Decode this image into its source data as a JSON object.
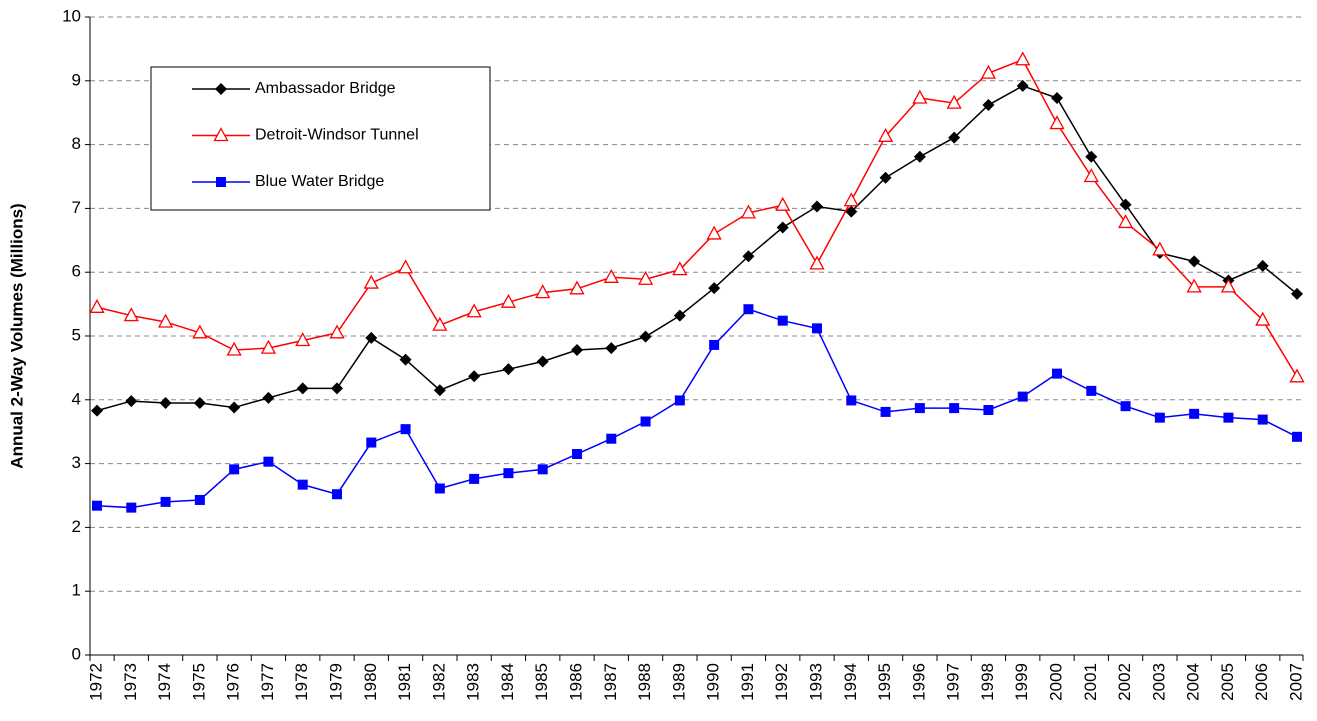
{
  "chart_data": {
    "type": "line",
    "y_label": "Annual 2-Way Volumes (Millions)",
    "categories": [
      "1972",
      "1973",
      "1974",
      "1975",
      "1976",
      "1977",
      "1978",
      "1979",
      "1980",
      "1981",
      "1982",
      "1983",
      "1984",
      "1985",
      "1986",
      "1987",
      "1988",
      "1989",
      "1990",
      "1991",
      "1992",
      "1993",
      "1994",
      "1995",
      "1996",
      "1997",
      "1998",
      "1999",
      "2000",
      "2001",
      "2002",
      "2003",
      "2004",
      "2005",
      "2006",
      "2007"
    ],
    "series": [
      {
        "name": "Ambassador Bridge",
        "color": "#000000",
        "marker": "diamond",
        "values": [
          3.83,
          3.98,
          3.95,
          3.95,
          3.88,
          4.03,
          4.18,
          4.18,
          4.97,
          4.63,
          4.15,
          4.37,
          4.48,
          4.6,
          4.78,
          4.81,
          4.99,
          5.32,
          5.75,
          6.25,
          6.7,
          7.03,
          6.95,
          7.48,
          7.81,
          8.11,
          8.62,
          8.92,
          8.73,
          7.81,
          7.06,
          6.3,
          6.17,
          5.87,
          6.1,
          5.66
        ]
      },
      {
        "name": "Detroit-Windsor Tunnel",
        "color": "#ff0000",
        "marker": "triangle",
        "values": [
          5.45,
          5.32,
          5.22,
          5.05,
          4.78,
          4.81,
          4.93,
          5.05,
          5.83,
          6.07,
          5.17,
          5.38,
          5.53,
          5.68,
          5.74,
          5.92,
          5.89,
          6.04,
          6.6,
          6.93,
          7.05,
          6.13,
          7.12,
          8.13,
          8.73,
          8.65,
          9.12,
          9.33,
          8.33,
          7.5,
          6.78,
          6.35,
          5.77,
          5.77,
          5.25,
          4.36
        ]
      },
      {
        "name": "Blue Water Bridge",
        "color": "#0000ff",
        "marker": "square",
        "values": [
          2.34,
          2.31,
          2.4,
          2.43,
          2.91,
          3.03,
          2.67,
          2.52,
          3.33,
          3.54,
          2.61,
          2.76,
          2.85,
          2.91,
          3.15,
          3.39,
          3.66,
          3.99,
          4.86,
          5.42,
          5.24,
          5.12,
          3.99,
          3.81,
          3.87,
          3.87,
          3.84,
          4.05,
          4.41,
          4.14,
          3.9,
          3.72,
          3.78,
          3.72,
          3.69,
          3.42
        ]
      }
    ],
    "ylim": [
      0,
      10
    ],
    "yticks": [
      0,
      1,
      2,
      3,
      4,
      5,
      6,
      7,
      8,
      9,
      10
    ],
    "grid": true
  }
}
